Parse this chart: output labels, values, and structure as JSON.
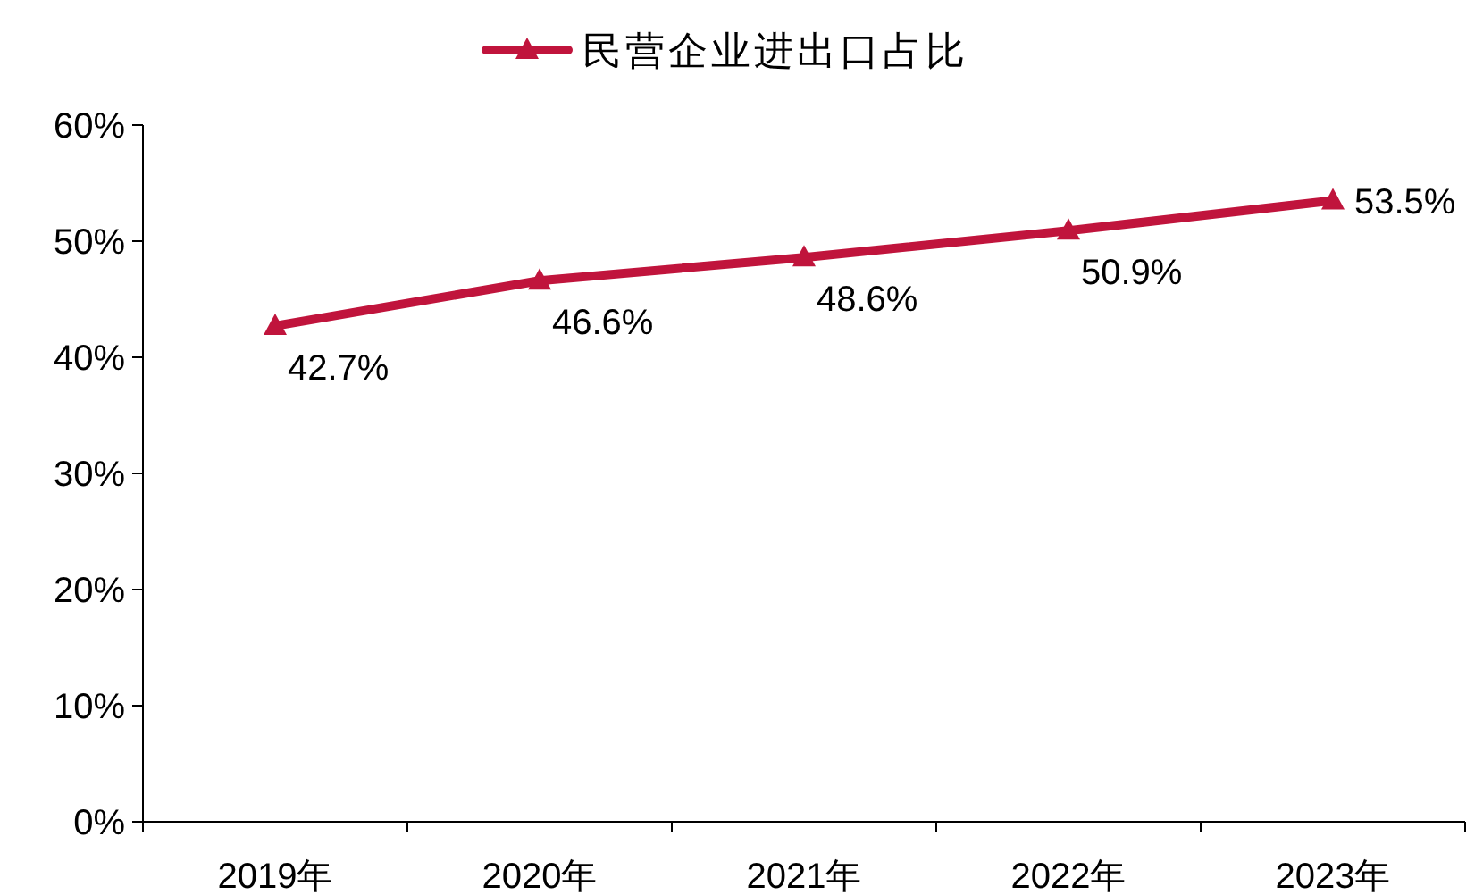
{
  "chart_data": {
    "type": "line",
    "categories": [
      "2019年",
      "2020年",
      "2021年",
      "2022年",
      "2023年"
    ],
    "series": [
      {
        "name": "民营企业进出口占比",
        "color": "#c0143c",
        "values": [
          42.7,
          46.6,
          48.6,
          50.9,
          53.5
        ],
        "value_labels": [
          "42.7%",
          "46.6%",
          "48.6%",
          "50.9%",
          "53.5%"
        ]
      }
    ],
    "ylim": [
      0,
      60
    ],
    "yticks": [
      {
        "value": 0,
        "label": "0%"
      },
      {
        "value": 10,
        "label": "10%"
      },
      {
        "value": 20,
        "label": "20%"
      },
      {
        "value": 30,
        "label": "30%"
      },
      {
        "value": 40,
        "label": "40%"
      },
      {
        "value": 50,
        "label": "50%"
      },
      {
        "value": 60,
        "label": "60%"
      }
    ],
    "legend": "top",
    "marker": "triangle",
    "line_style": "solid",
    "grid": false
  }
}
